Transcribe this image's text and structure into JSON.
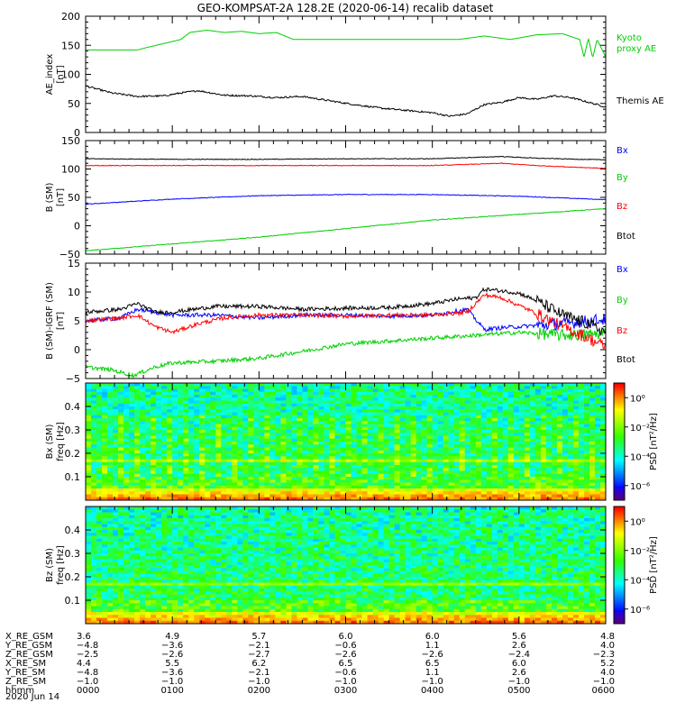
{
  "title": "GEO-KOMPSAT-2A 128.2E (2020-06-14) recalib dataset",
  "x_axis": {
    "tick_positions_hours": [
      0,
      1,
      2,
      3,
      4,
      5,
      6
    ],
    "range_hours": [
      0,
      6
    ]
  },
  "ephemeris": {
    "rows": [
      {
        "label": "X_RE_GSM",
        "values": [
          "3.6",
          "4.9",
          "5.7",
          "6.0",
          "6.0",
          "5.6",
          "4.8"
        ]
      },
      {
        "label": "Y_RE_GSM",
        "values": [
          "−4.8",
          "−3.6",
          "−2.1",
          "−0.6",
          "1.1",
          "2.6",
          "4.0"
        ]
      },
      {
        "label": "Z_RE_GSM",
        "values": [
          "−2.5",
          "−2.6",
          "−2.7",
          "−2.6",
          "−2.6",
          "−2.4",
          "−2.3"
        ]
      },
      {
        "label": "X_RE_SM",
        "values": [
          "4.4",
          "5.5",
          "6.2",
          "6.5",
          "6.5",
          "6.0",
          "5.2"
        ]
      },
      {
        "label": "Y_RE_SM",
        "values": [
          "−4.8",
          "−3.6",
          "−2.1",
          "−0.6",
          "1.1",
          "2.6",
          "4.0"
        ]
      },
      {
        "label": "Z_RE_SM",
        "values": [
          "−1.0",
          "−1.0",
          "−1.0",
          "−1.0",
          "−1.0",
          "−1.0",
          "−1.0"
        ]
      },
      {
        "label": "hhmm",
        "values": [
          "0000",
          "0100",
          "0200",
          "0300",
          "0400",
          "0500",
          "0600"
        ]
      }
    ],
    "date": "2020 Jun 14"
  },
  "chart_data": [
    {
      "type": "line",
      "ylabel": "AE_index\n[nT]",
      "ylim": [
        0,
        200
      ],
      "yticks": [
        "0",
        "50",
        "100",
        "150",
        "200"
      ],
      "legend": [
        "Kyoto\nproxy AE",
        "Themis AE"
      ],
      "series": [
        {
          "name": "Kyoto\nproxy AE",
          "color": "#00d000",
          "x": [
            0,
            0.6,
            0.7,
            1.1,
            1.2,
            1.4,
            1.6,
            1.8,
            2.0,
            2.2,
            2.4,
            4.3,
            4.6,
            4.9,
            5.2,
            5.5,
            5.7,
            5.75,
            5.8,
            5.85,
            5.9,
            6.0
          ],
          "y": [
            142,
            142,
            146,
            160,
            172,
            176,
            172,
            174,
            170,
            172,
            160,
            160,
            166,
            160,
            168,
            170,
            160,
            130,
            162,
            128,
            160,
            130
          ]
        },
        {
          "name": "Themis AE",
          "color": "#000000",
          "x": [
            0,
            0.3,
            0.6,
            0.9,
            1.1,
            1.3,
            1.6,
            1.9,
            2.2,
            2.5,
            2.8,
            3.1,
            3.4,
            3.7,
            4.0,
            4.2,
            4.4,
            4.6,
            4.8,
            5.0,
            5.2,
            5.4,
            5.6,
            5.8,
            6.0
          ],
          "y": [
            80,
            68,
            62,
            63,
            68,
            72,
            64,
            63,
            60,
            62,
            55,
            48,
            42,
            38,
            34,
            28,
            32,
            48,
            52,
            60,
            57,
            63,
            60,
            52,
            44
          ]
        }
      ]
    },
    {
      "type": "line",
      "ylabel": "B (SM)\n[nT]",
      "ylim": [
        -50,
        150
      ],
      "yticks": [
        "−50",
        "0",
        "50",
        "100",
        "150"
      ],
      "legend": [
        "Bx",
        "By",
        "Bz",
        "Btot"
      ],
      "series": [
        {
          "name": "Bx",
          "color": "#0000ff",
          "x": [
            0,
            1,
            2,
            3,
            4,
            5,
            6
          ],
          "y": [
            38,
            47,
            53,
            55,
            55,
            52,
            46
          ]
        },
        {
          "name": "By",
          "color": "#00d000",
          "x": [
            0,
            0.5,
            1,
            2,
            3,
            4,
            5,
            6
          ],
          "y": [
            -44,
            -38,
            -32,
            -20,
            -5,
            10,
            20,
            30
          ]
        },
        {
          "name": "Bz",
          "color": "#ff0000",
          "x": [
            0,
            1,
            2,
            3,
            4,
            4.8,
            5.2,
            6
          ],
          "y": [
            106,
            106,
            106,
            106,
            106,
            110,
            106,
            101
          ]
        },
        {
          "name": "Btot",
          "color": "#000000",
          "x": [
            0,
            1,
            2,
            3,
            4,
            4.8,
            5.2,
            6
          ],
          "y": [
            118,
            117,
            117,
            118,
            118,
            122,
            119,
            116
          ]
        }
      ]
    },
    {
      "type": "line",
      "ylabel": "B (SM)-IGRF (SM)\n[nT]",
      "ylim": [
        -5,
        15
      ],
      "yticks": [
        "−5",
        "0",
        "5",
        "10",
        "15"
      ],
      "legend": [
        "Bx",
        "By",
        "Bz",
        "Btot"
      ],
      "series": [
        {
          "name": "Bx",
          "color": "#0000ff",
          "x": [
            0,
            0.4,
            0.6,
            1.0,
            1.5,
            2.0,
            2.5,
            3.0,
            3.5,
            4.0,
            4.4,
            4.6,
            4.8,
            5.0,
            5.5,
            6.0
          ],
          "y": [
            5,
            5.5,
            7,
            6,
            6,
            5.5,
            6,
            6,
            5.8,
            6,
            7,
            3.5,
            3.8,
            4.0,
            4.5,
            5.3
          ]
        },
        {
          "name": "By",
          "color": "#00d000",
          "x": [
            0,
            0.3,
            0.55,
            0.8,
            1.0,
            1.5,
            2.0,
            2.5,
            3.0,
            3.5,
            4.0,
            4.5,
            5.0,
            5.5,
            6.0
          ],
          "y": [
            -3.0,
            -3.5,
            -4.5,
            -3.0,
            -2.3,
            -2.0,
            -1.5,
            -0.3,
            1.0,
            1.5,
            2.0,
            2.5,
            3.0,
            2.5,
            2.8
          ]
        },
        {
          "name": "Bz",
          "color": "#ff0000",
          "x": [
            0,
            0.4,
            0.6,
            0.8,
            1.0,
            1.3,
            1.6,
            2.0,
            2.5,
            3.0,
            3.5,
            4.0,
            4.4,
            4.6,
            4.8,
            5.1,
            5.5,
            5.8,
            6.0
          ],
          "y": [
            5,
            5.5,
            6,
            4,
            3,
            4.5,
            5.5,
            6,
            6,
            5.8,
            6,
            6,
            6.5,
            9.5,
            9,
            7,
            4,
            2,
            0.5
          ]
        },
        {
          "name": "Btot",
          "color": "#000000",
          "x": [
            0,
            0.4,
            0.6,
            0.8,
            1.0,
            1.5,
            2.0,
            2.5,
            3.0,
            3.5,
            4.0,
            4.3,
            4.5,
            4.6,
            4.8,
            5.0,
            5.2,
            5.5,
            5.8,
            6.0
          ],
          "y": [
            6.5,
            7,
            8,
            6.5,
            6.5,
            7.5,
            7.5,
            7,
            7.2,
            7.3,
            8,
            8.8,
            9.0,
            10.5,
            10.2,
            9.8,
            8.5,
            6,
            4.5,
            3
          ]
        }
      ]
    },
    {
      "type": "heatmap",
      "ylabel": "Bx (SM)\nfreq [Hz]",
      "ylim": [
        0,
        0.5
      ],
      "yticks": [
        "0.1",
        "0.2",
        "0.3",
        "0.4"
      ],
      "colorbar": {
        "label": "PSD [nT²/Hz]",
        "ticks": [
          "10⁰",
          "10⁻²",
          "10⁻⁴",
          "10⁻⁶"
        ],
        "range_exp": [
          -7,
          1
        ]
      }
    },
    {
      "type": "heatmap",
      "ylabel": "Bz (SM)\nfreq [Hz]",
      "ylim": [
        0,
        0.5
      ],
      "yticks": [
        "0.1",
        "0.2",
        "0.3",
        "0.4"
      ],
      "colorbar": {
        "label": "PSD [nT²/Hz]",
        "ticks": [
          "10⁰",
          "10⁻²",
          "10⁻⁴",
          "10⁻⁶"
        ],
        "range_exp": [
          -7,
          1
        ]
      }
    }
  ]
}
